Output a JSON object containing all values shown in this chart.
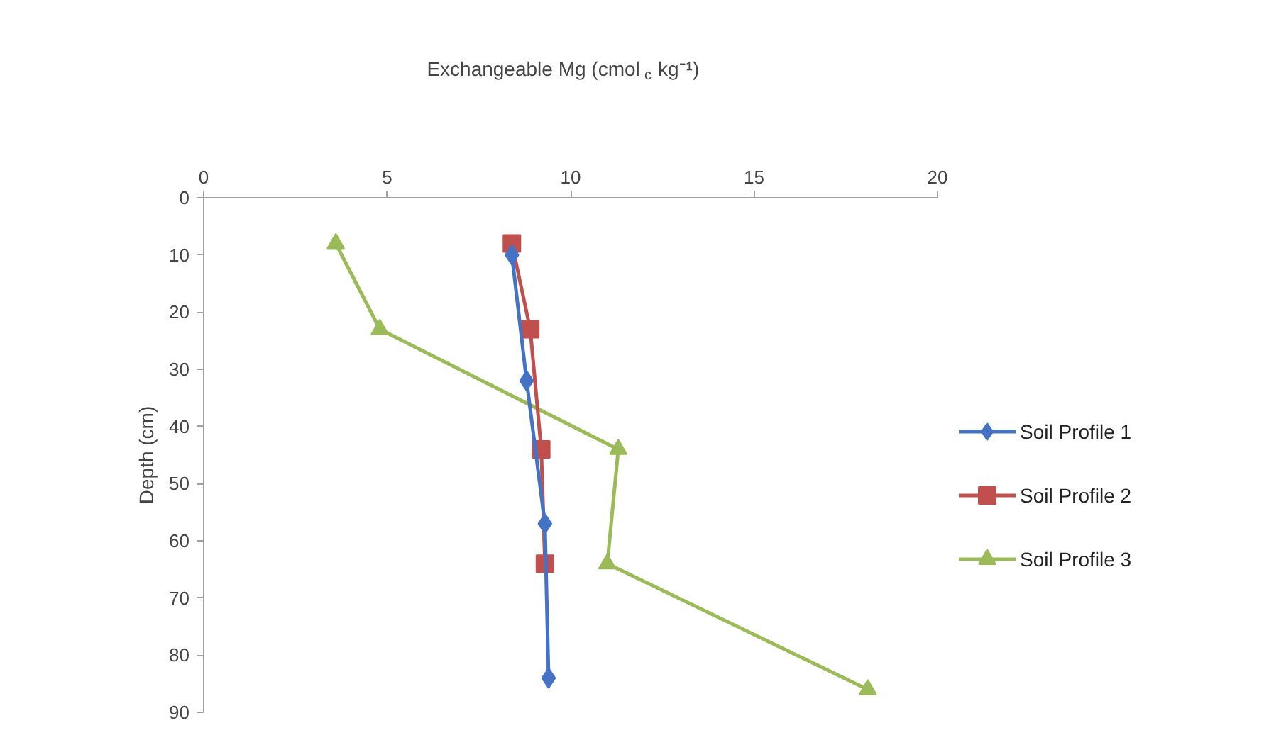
{
  "chart_data": {
    "type": "line",
    "xlabel": "Exchangeable Mg (cmol$_{c}$ kg⁻¹)",
    "ylabel": "Depth (cm)",
    "xlim": [
      0,
      20
    ],
    "xticks": [
      0,
      5,
      10,
      15,
      20
    ],
    "ylim": [
      90,
      0
    ],
    "yticks": [
      0,
      10,
      20,
      30,
      40,
      50,
      60,
      70,
      80,
      90
    ],
    "grid": false,
    "legend": "right",
    "line_style": "solid",
    "series": [
      {
        "name": "Soil Profile 1",
        "color": "#4472c4",
        "marker": "diamond",
        "x": [
          8.4,
          8.8,
          9.3,
          9.4
        ],
        "values": [
          10,
          32,
          57,
          84
        ]
      },
      {
        "name": "Soil Profile 2",
        "color": "#c0504d",
        "marker": "square",
        "x": [
          8.4,
          8.9,
          9.2,
          9.3
        ],
        "values": [
          8,
          23,
          44,
          64
        ]
      },
      {
        "name": "Soil Profile 3",
        "color": "#9bbb59",
        "marker": "triangle",
        "x": [
          3.6,
          4.8,
          11.3,
          11.0,
          18.1
        ],
        "values": [
          8,
          23,
          44,
          64,
          86
        ]
      }
    ]
  }
}
